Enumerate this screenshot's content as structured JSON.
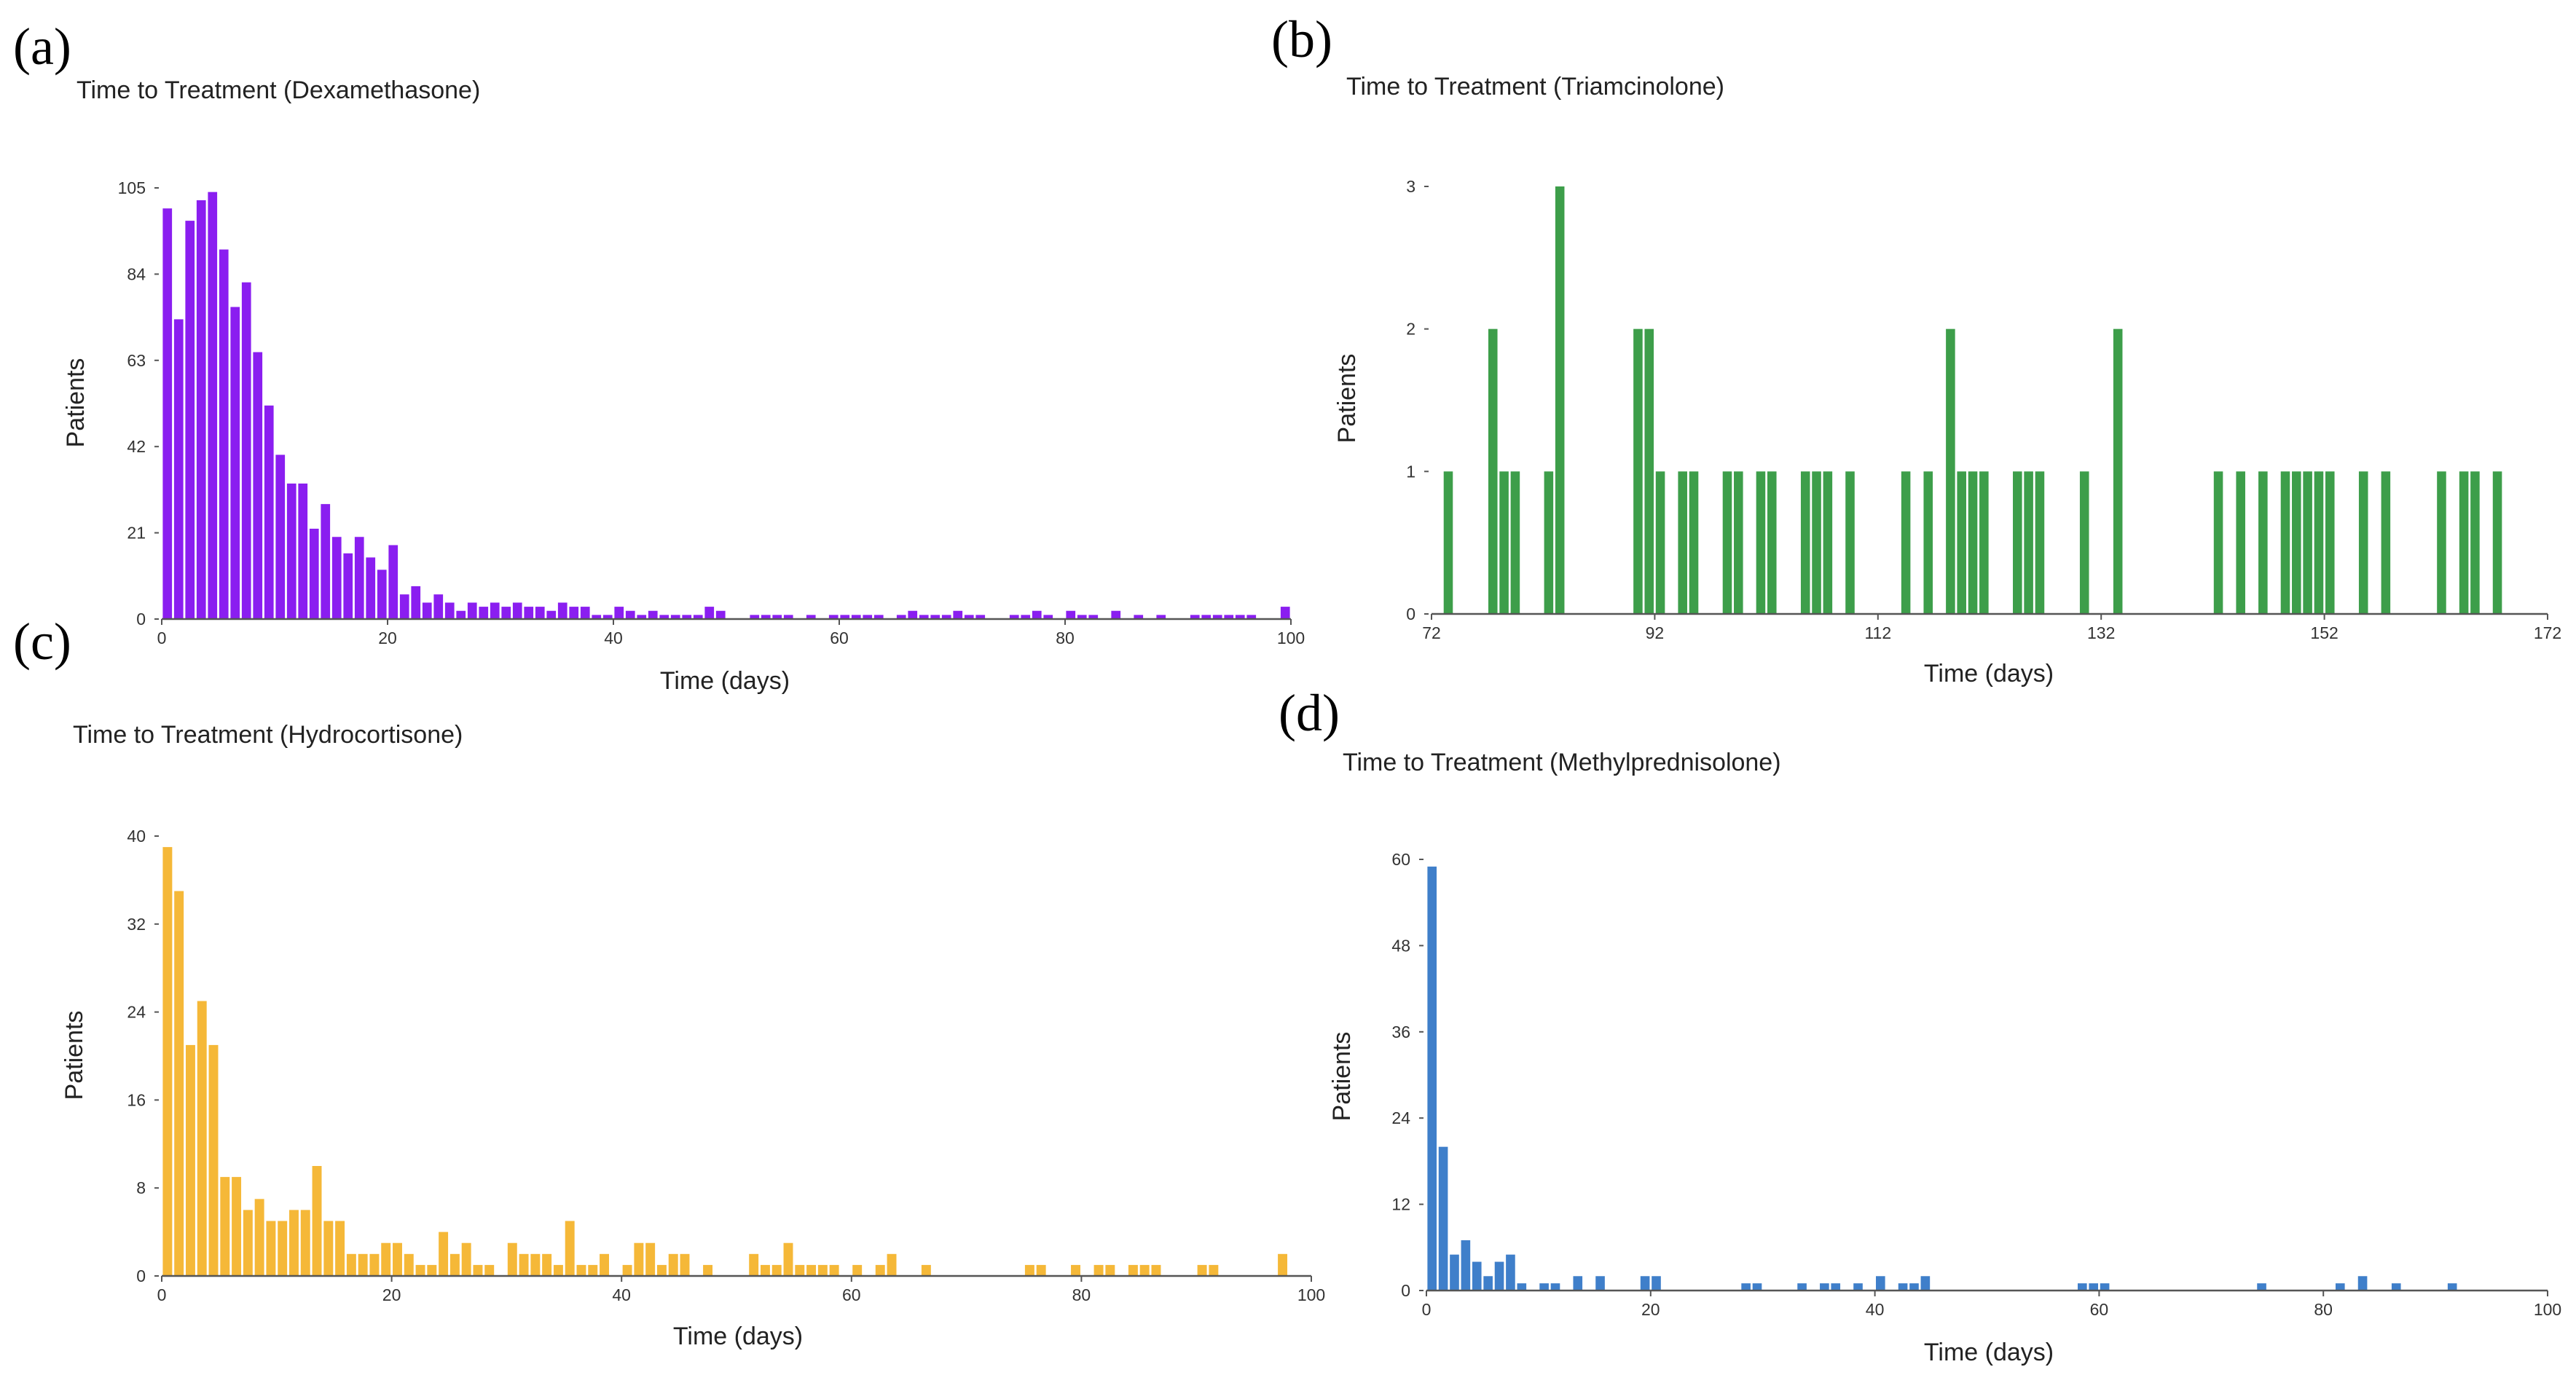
{
  "chart_data": [
    {
      "type": "bar",
      "panel": "(a)",
      "title": "Time to Treatment (Dexamethasone)",
      "xlabel": "Time (days)",
      "ylabel": "Patients",
      "color": "#8a1ef0",
      "xlim": [
        0,
        100
      ],
      "ylim": [
        0,
        105
      ],
      "x_ticks": [
        0,
        20,
        40,
        60,
        80,
        100
      ],
      "y_ticks": [
        0,
        21,
        42,
        63,
        84,
        105
      ],
      "bin_width": 1,
      "x": [
        0,
        1,
        2,
        3,
        4,
        5,
        6,
        7,
        8,
        9,
        10,
        11,
        12,
        13,
        14,
        15,
        16,
        17,
        18,
        19,
        20,
        21,
        22,
        23,
        24,
        25,
        26,
        27,
        28,
        29,
        30,
        31,
        32,
        33,
        34,
        35,
        36,
        37,
        38,
        39,
        40,
        41,
        42,
        43,
        44,
        45,
        46,
        47,
        48,
        49,
        52,
        53,
        54,
        55,
        57,
        59,
        60,
        61,
        62,
        63,
        65,
        66,
        67,
        68,
        69,
        70,
        71,
        72,
        75,
        76,
        77,
        78,
        80,
        81,
        82,
        84,
        86,
        88,
        91,
        92,
        93,
        94,
        95,
        96,
        99
      ],
      "values": [
        100,
        73,
        97,
        102,
        104,
        90,
        76,
        82,
        65,
        52,
        40,
        33,
        33,
        22,
        28,
        20,
        16,
        20,
        15,
        12,
        18,
        6,
        8,
        4,
        6,
        4,
        2,
        4,
        3,
        4,
        3,
        4,
        3,
        3,
        2,
        4,
        3,
        3,
        1,
        1,
        3,
        2,
        1,
        2,
        1,
        1,
        1,
        1,
        3,
        2,
        1,
        1,
        1,
        1,
        1,
        1,
        1,
        1,
        1,
        1,
        1,
        2,
        1,
        1,
        1,
        2,
        1,
        1,
        1,
        1,
        2,
        1,
        2,
        1,
        1,
        2,
        1,
        1,
        1,
        1,
        1,
        1,
        1,
        1,
        3
      ]
    },
    {
      "type": "bar",
      "panel": "(b)",
      "title": "Time to Treatment (Triamcinolone)",
      "xlabel": "Time (days)",
      "ylabel": "Patients",
      "color": "#3d9e4a",
      "xlim": [
        72,
        172
      ],
      "ylim": [
        0,
        3
      ],
      "x_ticks": [
        72,
        92,
        112,
        132,
        152,
        172
      ],
      "y_ticks": [
        0,
        1,
        2,
        3
      ],
      "bin_width": 1,
      "x": [
        73,
        77,
        78,
        79,
        82,
        83,
        90,
        91,
        92,
        94,
        95,
        98,
        99,
        101,
        102,
        105,
        106,
        107,
        109,
        114,
        116,
        118,
        119,
        120,
        121,
        124,
        125,
        126,
        130,
        133,
        142,
        144,
        146,
        148,
        149,
        150,
        151,
        152,
        155,
        157,
        162,
        164,
        165,
        167
      ],
      "values": [
        1,
        2,
        1,
        1,
        1,
        3,
        2,
        2,
        1,
        1,
        1,
        1,
        1,
        1,
        1,
        1,
        1,
        1,
        1,
        1,
        1,
        2,
        1,
        1,
        1,
        1,
        1,
        1,
        1,
        2,
        1,
        1,
        1,
        1,
        1,
        1,
        1,
        1,
        1,
        1,
        1,
        1,
        1,
        1
      ]
    },
    {
      "type": "bar",
      "panel": "(c)",
      "title": "Time to Treatment (Hydrocortisone)",
      "xlabel": "Time (days)",
      "ylabel": "Patients",
      "color": "#f5b838",
      "xlim": [
        0,
        100
      ],
      "ylim": [
        0,
        40
      ],
      "x_ticks": [
        0,
        20,
        40,
        60,
        80,
        100
      ],
      "y_ticks": [
        0,
        8,
        16,
        24,
        32,
        40
      ],
      "bin_width": 1,
      "x": [
        0,
        1,
        2,
        3,
        4,
        5,
        6,
        7,
        8,
        9,
        10,
        11,
        12,
        13,
        14,
        15,
        16,
        17,
        18,
        19,
        20,
        21,
        22,
        23,
        24,
        25,
        26,
        27,
        28,
        30,
        31,
        32,
        33,
        34,
        35,
        36,
        37,
        38,
        40,
        41,
        42,
        43,
        44,
        45,
        47,
        51,
        52,
        53,
        54,
        55,
        56,
        57,
        58,
        60,
        62,
        63,
        66,
        75,
        76,
        79,
        81,
        82,
        84,
        85,
        86,
        90,
        91,
        97
      ],
      "values": [
        39,
        35,
        21,
        25,
        21,
        9,
        9,
        6,
        7,
        5,
        5,
        6,
        6,
        10,
        5,
        5,
        2,
        2,
        2,
        3,
        3,
        2,
        1,
        1,
        4,
        2,
        3,
        1,
        1,
        3,
        2,
        2,
        2,
        1,
        5,
        1,
        1,
        2,
        1,
        3,
        3,
        1,
        2,
        2,
        1,
        2,
        1,
        1,
        3,
        1,
        1,
        1,
        1,
        1,
        1,
        2,
        1,
        1,
        1,
        1,
        1,
        1,
        1,
        1,
        1,
        1,
        1,
        2
      ]
    },
    {
      "type": "bar",
      "panel": "(d)",
      "title": "Time to Treatment (Methylprednisolone)",
      "xlabel": "Time (days)",
      "ylabel": "Patients",
      "color": "#3f7fca",
      "xlim": [
        0,
        100
      ],
      "ylim": [
        0,
        60
      ],
      "x_ticks": [
        0,
        20,
        40,
        60,
        80,
        100
      ],
      "y_ticks": [
        0,
        12,
        24,
        36,
        48,
        60
      ],
      "bin_width": 1,
      "x": [
        0,
        1,
        2,
        3,
        4,
        5,
        6,
        7,
        8,
        10,
        11,
        13,
        15,
        19,
        20,
        28,
        29,
        33,
        35,
        36,
        38,
        40,
        42,
        43,
        44,
        58,
        59,
        60,
        74,
        81,
        83,
        86,
        91
      ],
      "values": [
        59,
        20,
        5,
        7,
        4,
        2,
        4,
        5,
        1,
        1,
        1,
        2,
        2,
        2,
        2,
        1,
        1,
        1,
        1,
        1,
        1,
        2,
        1,
        1,
        2,
        1,
        1,
        1,
        1,
        1,
        2,
        1,
        1
      ]
    }
  ]
}
